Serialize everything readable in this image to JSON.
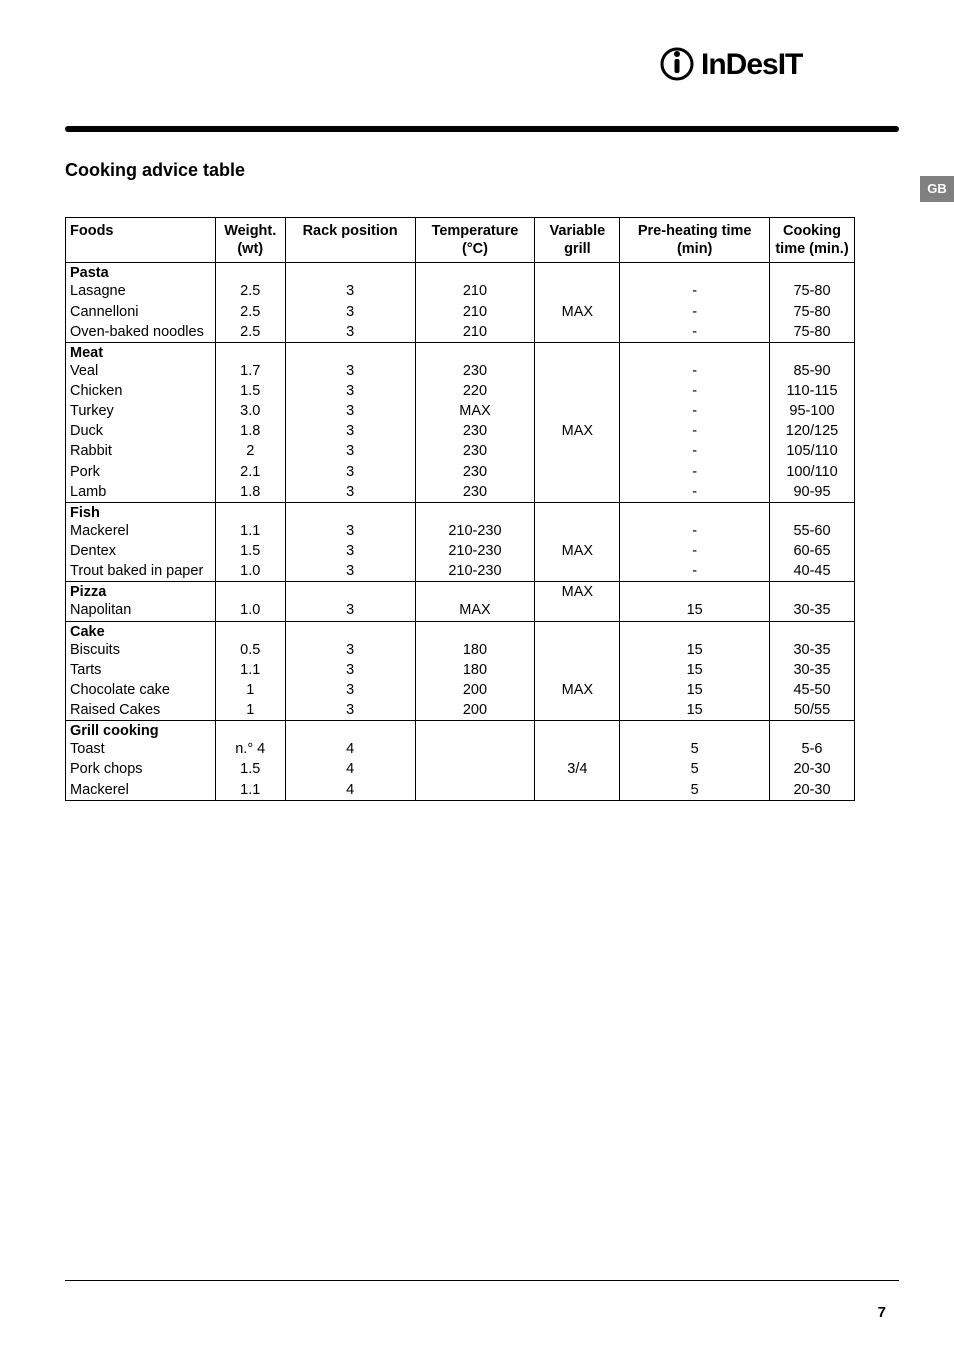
{
  "brand": "InDesIT",
  "language_tab": "GB",
  "page_number": "7",
  "title": "Cooking advice table",
  "headers": {
    "foods": "Foods",
    "weight": "Weight. (wt)",
    "rack": "Rack position",
    "temp": "Temperature (°C)",
    "grill": "Variable grill",
    "preheat": "Pre-heating time (min)",
    "cooktime": "Cooking time (min.)"
  },
  "sections": [
    {
      "name": "Pasta",
      "grill": "MAX",
      "rows": [
        {
          "food": "Lasagne",
          "weight": "2.5",
          "rack": "3",
          "temp": "210",
          "preheat": "-",
          "cook": "75-80"
        },
        {
          "food": "Cannelloni",
          "weight": "2.5",
          "rack": "3",
          "temp": "210",
          "preheat": "-",
          "cook": "75-80"
        },
        {
          "food": "Oven-baked noodles",
          "weight": "2.5",
          "rack": "3",
          "temp": "210",
          "preheat": "-",
          "cook": "75-80"
        }
      ]
    },
    {
      "name": "Meat",
      "grill": "MAX",
      "rows": [
        {
          "food": "Veal",
          "weight": "1.7",
          "rack": "3",
          "temp": "230",
          "preheat": "-",
          "cook": "85-90"
        },
        {
          "food": "Chicken",
          "weight": "1.5",
          "rack": "3",
          "temp": "220",
          "preheat": "-",
          "cook": "110-115"
        },
        {
          "food": "Turkey",
          "weight": "3.0",
          "rack": "3",
          "temp": "MAX",
          "preheat": "-",
          "cook": "95-100"
        },
        {
          "food": "Duck",
          "weight": "1.8",
          "rack": "3",
          "temp": "230",
          "preheat": "-",
          "cook": "120/125"
        },
        {
          "food": "Rabbit",
          "weight": "2",
          "rack": "3",
          "temp": "230",
          "preheat": "-",
          "cook": "105/110"
        },
        {
          "food": "Pork",
          "weight": "2.1",
          "rack": "3",
          "temp": "230",
          "preheat": "-",
          "cook": "100/110"
        },
        {
          "food": "Lamb",
          "weight": "1.8",
          "rack": "3",
          "temp": "230",
          "preheat": "-",
          "cook": "90-95"
        }
      ]
    },
    {
      "name": "Fish",
      "grill": "MAX",
      "rows": [
        {
          "food": "Mackerel",
          "weight": "1.1",
          "rack": "3",
          "temp": "210-230",
          "preheat": "-",
          "cook": "55-60"
        },
        {
          "food": "Dentex",
          "weight": "1.5",
          "rack": "3",
          "temp": "210-230",
          "preheat": "-",
          "cook": "60-65"
        },
        {
          "food": "Trout baked in paper",
          "weight": "1.0",
          "rack": "3",
          "temp": "210-230",
          "preheat": "-",
          "cook": "40-45"
        }
      ]
    },
    {
      "name": "Pizza",
      "grill": "MAX",
      "rows": [
        {
          "food": "Napolitan",
          "weight": "1.0",
          "rack": "3",
          "temp": "MAX",
          "preheat": "15",
          "cook": "30-35"
        }
      ]
    },
    {
      "name": "Cake",
      "grill": "MAX",
      "rows": [
        {
          "food": "Biscuits",
          "weight": "0.5",
          "rack": "3",
          "temp": "180",
          "preheat": "15",
          "cook": "30-35"
        },
        {
          "food": "Tarts",
          "weight": "1.1",
          "rack": "3",
          "temp": "180",
          "preheat": "15",
          "cook": "30-35"
        },
        {
          "food": "Chocolate cake",
          "weight": "1",
          "rack": "3",
          "temp": "200",
          "preheat": "15",
          "cook": "45-50"
        },
        {
          "food": "Raised Cakes",
          "weight": "1",
          "rack": "3",
          "temp": "200",
          "preheat": "15",
          "cook": "50/55"
        }
      ]
    },
    {
      "name": "Grill cooking",
      "grill": "3/4",
      "rows": [
        {
          "food": "Toast",
          "weight": "n.° 4",
          "rack": "4",
          "temp": "",
          "preheat": "5",
          "cook": "5-6"
        },
        {
          "food": "Pork chops",
          "weight": "1.5",
          "rack": "4",
          "temp": "",
          "preheat": "5",
          "cook": "20-30"
        },
        {
          "food": "Mackerel",
          "weight": "1.1",
          "rack": "4",
          "temp": "",
          "preheat": "5",
          "cook": "20-30"
        }
      ]
    }
  ]
}
